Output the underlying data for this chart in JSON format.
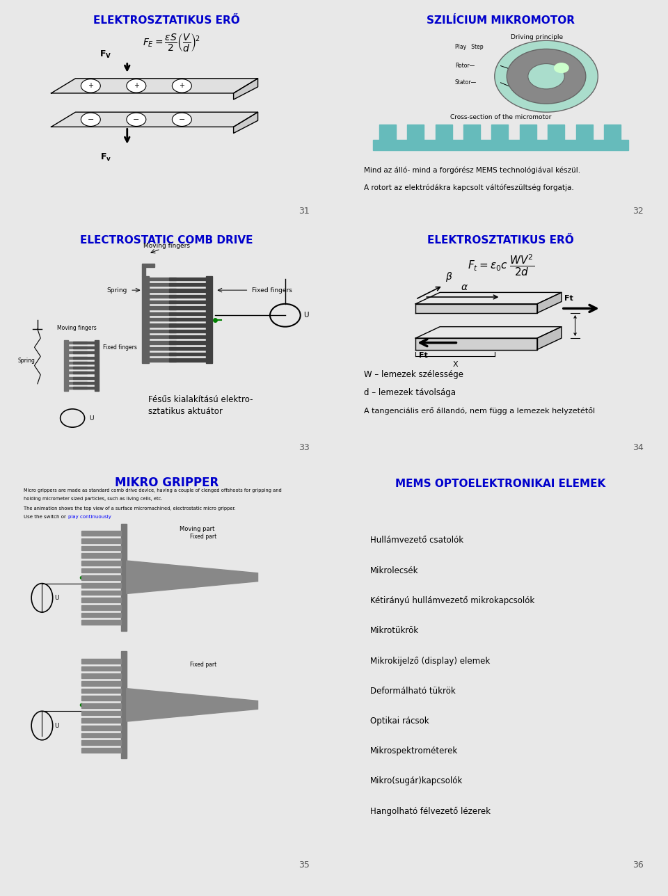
{
  "bg_color": "#e8e8e8",
  "panel_bg": "#ffffff",
  "border_color": "#222222",
  "title_color": "#0000cc",
  "text_color": "#000000",
  "panel1": {
    "title": "ELEKTROSZTATIKUS ERŐ",
    "slide_num": "31"
  },
  "panel2": {
    "title": "SZILÍCIUM MIKROMOTOR",
    "slide_num": "32",
    "text1": "Mind az álló- mind a forgórész MEMS technológiával készül.",
    "text2": "A rotort az elektródákra kapcsolt váltófeszültség forgatja."
  },
  "panel3": {
    "title": "ELECTROSTATIC COMB DRIVE",
    "slide_num": "33",
    "caption": "Fésűs kialakítású elektro-\nsztatikus aktuátor"
  },
  "panel4": {
    "title": "ELEKTROSZTATIKUS ERŐ",
    "slide_num": "34",
    "text1": "W – lemezek szélessége",
    "text2": "d – lemezek távolsága",
    "text3": "A tangenciális erő állandó, nem függ a lemezek helyzetétől"
  },
  "panel5": {
    "title": "MIKRO GRIPPER",
    "slide_num": "35",
    "desc1": "Micro grippers are made as standard comb drive device, having a couple of clenged offshoots for gripping and",
    "desc2": "holding micrometer sized particles, such as living cells, etc.",
    "desc3": "The animation shows the top view of a surface micromachined, electrostatic micro gripper.",
    "desc4": "Use the switch or ",
    "desc4b": "play continuously"
  },
  "panel6": {
    "title": "MEMS OPTOELEKTRONIKAI ELEMEK",
    "slide_num": "36",
    "items": [
      "Hullámvezető csatolók",
      "Mikrolecsék",
      "Kétirányú hullámvezető mikrokapcsolók",
      "Mikrotükrök",
      "Mikrokijelző (display) elemek",
      "Deformálható tükrök",
      "Optikai rácsok",
      "Mikrospektrométerek",
      "Mikro(sugár)kapcsolók",
      "Hangolható félvezető lézerek"
    ]
  }
}
